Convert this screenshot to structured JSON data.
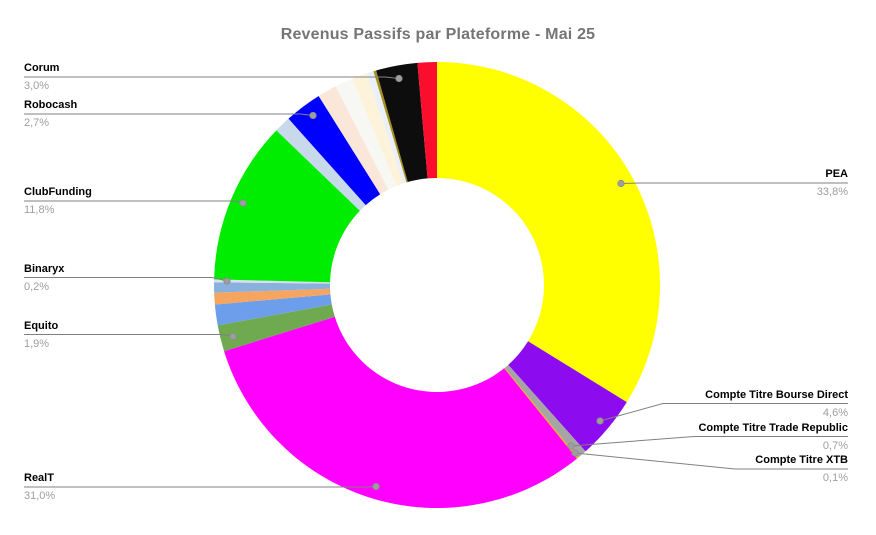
{
  "chart_data": {
    "type": "pie",
    "subtype": "donut",
    "title": "Revenus Passifs par Plateforme - Mai 25",
    "unit": "%",
    "hole_ratio": 0.48,
    "start_angle_deg": 0,
    "direction": "clockwise",
    "legend_position": "none",
    "labels_style": "callout-lines-with-dots",
    "segments": [
      {
        "label": "PEA",
        "value": 33.8,
        "pct_label": "33,8%",
        "color": "#ffff00",
        "side": "right"
      },
      {
        "label": "Compte Titre Bourse Direct",
        "value": 4.6,
        "pct_label": "4,6%",
        "color": "#8c0bef",
        "side": "right"
      },
      {
        "label": "Compte Titre Trade Republic",
        "value": 0.7,
        "pct_label": "0,7%",
        "color": "#a5a5a5",
        "side": "right"
      },
      {
        "label": "Compte Titre XTB",
        "value": 0.1,
        "pct_label": "0,1%",
        "color": "#ffab00",
        "side": "right"
      },
      {
        "label": "RealT",
        "value": 31.0,
        "pct_label": "31,0%",
        "color": "#ff00ff",
        "side": "left"
      },
      {
        "label": "Equito",
        "value": 1.9,
        "pct_label": "1,9%",
        "color": "#6faa50",
        "side": "left"
      },
      {
        "label": "",
        "value": 1.5,
        "pct_label": "",
        "color": "#6d9eeb",
        "side": ""
      },
      {
        "label": "",
        "value": 0.85,
        "pct_label": "",
        "color": "#f5a55f",
        "side": ""
      },
      {
        "label": "",
        "value": 0.75,
        "pct_label": "",
        "color": "#8ab0dd",
        "side": ""
      },
      {
        "label": "Binaryx",
        "value": 0.2,
        "pct_label": "0,2%",
        "color": "#d8dfee",
        "side": "left"
      },
      {
        "label": "ClubFunding",
        "value": 11.8,
        "pct_label": "11,8%",
        "color": "#00ec00",
        "side": "left"
      },
      {
        "label": "",
        "value": 1.2,
        "pct_label": "",
        "color": "#c8d9ec",
        "side": ""
      },
      {
        "label": "Robocash",
        "value": 2.7,
        "pct_label": "2,7%",
        "color": "#0000ff",
        "side": "left"
      },
      {
        "label": "",
        "value": 1.4,
        "pct_label": "",
        "color": "#fbe7d9",
        "side": ""
      },
      {
        "label": "",
        "value": 1.3,
        "pct_label": "",
        "color": "#f7f7f3",
        "side": ""
      },
      {
        "label": "",
        "value": 1.1,
        "pct_label": "",
        "color": "#fdf3da",
        "side": ""
      },
      {
        "label": "",
        "value": 0.5,
        "pct_label": "",
        "color": "#eaf0f8",
        "side": ""
      },
      {
        "label": "",
        "value": 0.2,
        "pct_label": "",
        "color": "#a89020",
        "side": ""
      },
      {
        "label": "Corum",
        "value": 3.0,
        "pct_label": "3,0%",
        "color": "#0d0d0d",
        "side": "left"
      },
      {
        "label": "",
        "value": 1.4,
        "pct_label": "",
        "color": "#fb0d2e",
        "side": ""
      }
    ],
    "colors": {
      "title_text": "#757575",
      "label_text": "#000000",
      "pct_text": "#9e9e9e",
      "leader_line": "#808080",
      "leader_dot": "#9e9e9e",
      "background": "#ffffff"
    }
  }
}
